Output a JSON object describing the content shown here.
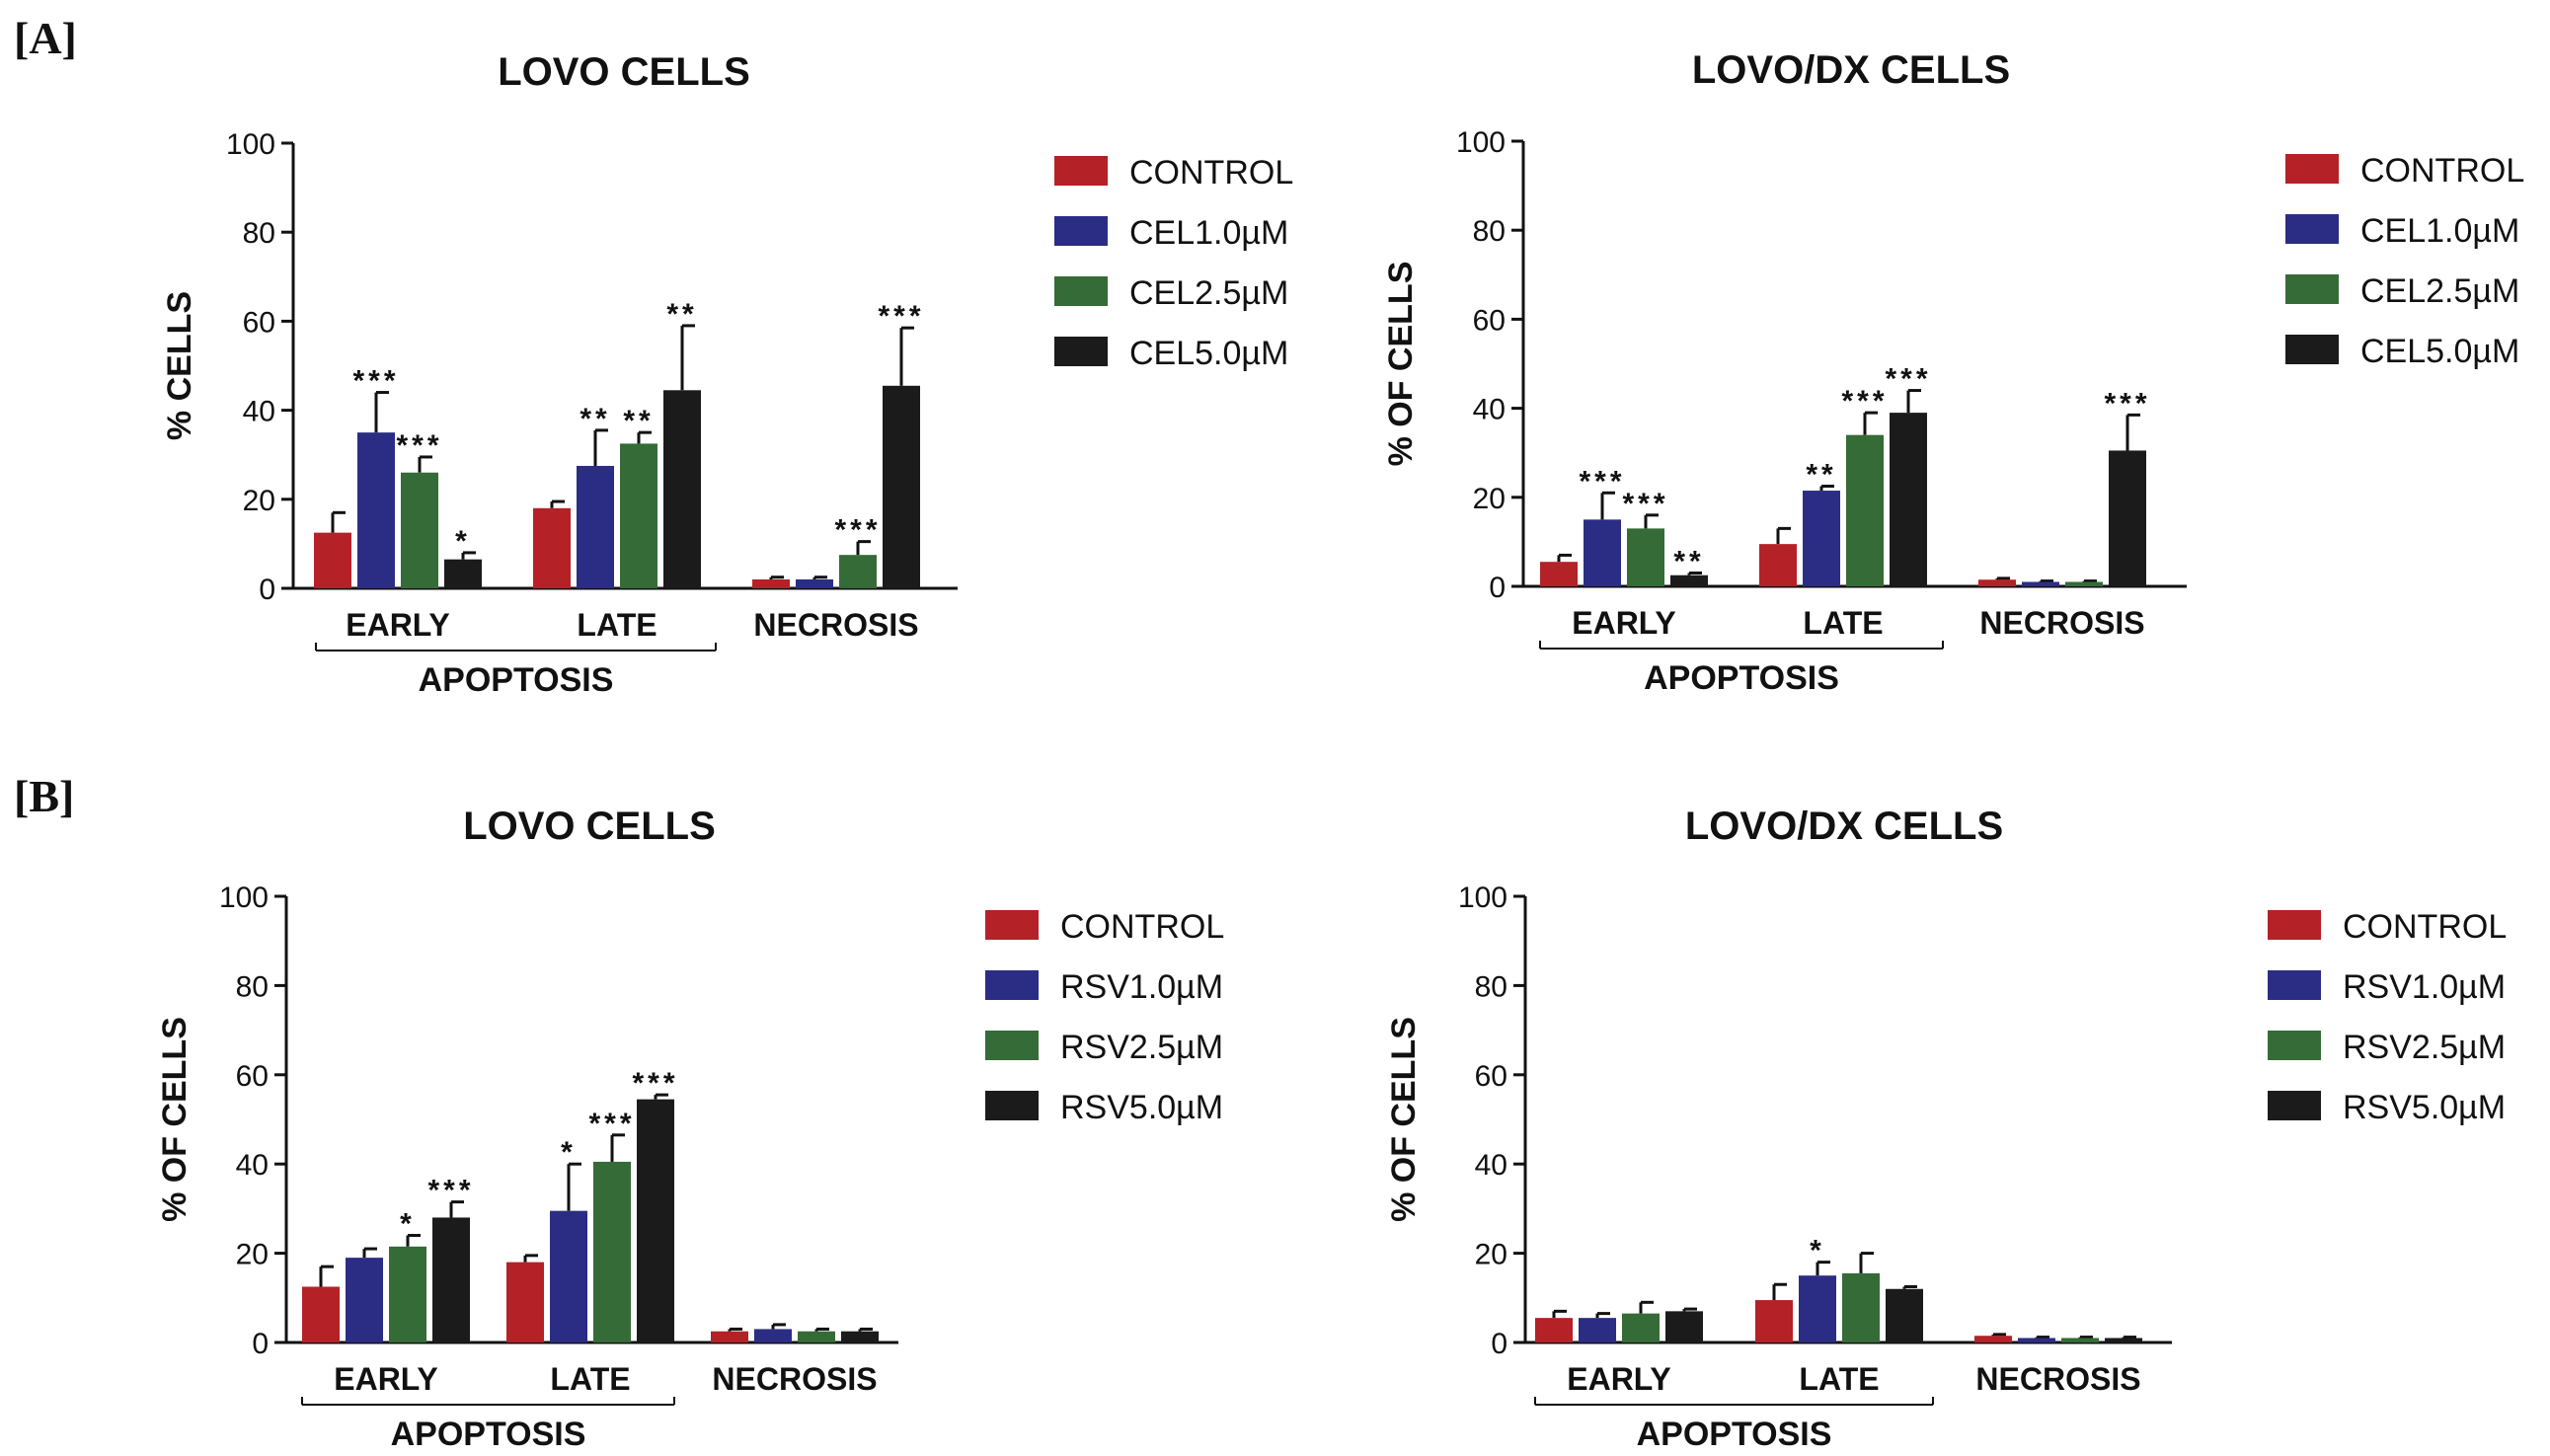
{
  "panels": [
    {
      "label": "[A]"
    },
    {
      "label": "[B]"
    }
  ],
  "colors": {
    "control": "#b42127",
    "dose1": "#2b2d84",
    "dose2": "#356b37",
    "dose3": "#1b1b1b",
    "axis": "#111111"
  },
  "chart_data": [
    {
      "type": "bar",
      "panel": "A",
      "title": "LOVO CELLS",
      "xlabel": "",
      "ylabel": "% CELLS",
      "ylim": [
        0,
        100
      ],
      "yticks": [
        "0",
        "20",
        "40",
        "60",
        "80",
        "100"
      ],
      "categories": [
        "EARLY",
        "LATE",
        "NECROSIS"
      ],
      "group_label": "APOPTOSIS",
      "legend_position": "right",
      "series": [
        {
          "name": "CONTROL",
          "color_key": "control",
          "values": [
            12.5,
            18,
            2
          ],
          "errors": [
            4.5,
            1.5,
            0.5
          ],
          "sig": [
            "",
            "",
            ""
          ]
        },
        {
          "name": "CEL1.0µM",
          "color_key": "dose1",
          "values": [
            35,
            27.5,
            2
          ],
          "errors": [
            9,
            8,
            0.5
          ],
          "sig": [
            "***",
            "**",
            ""
          ]
        },
        {
          "name": "CEL2.5µM",
          "color_key": "dose2",
          "values": [
            26,
            32.5,
            7.5
          ],
          "errors": [
            3.5,
            2.5,
            3
          ],
          "sig": [
            "***",
            "**",
            "***"
          ]
        },
        {
          "name": "CEL5.0µM",
          "color_key": "dose3",
          "values": [
            6.5,
            44.5,
            45.5
          ],
          "errors": [
            1.5,
            14.5,
            13
          ],
          "sig": [
            "*",
            "**",
            "***"
          ]
        }
      ]
    },
    {
      "type": "bar",
      "panel": "A",
      "title": "LOVO/DX CELLS",
      "xlabel": "",
      "ylabel": "% OF CELLS",
      "ylim": [
        0,
        100
      ],
      "yticks": [
        "0",
        "20",
        "40",
        "60",
        "80",
        "100"
      ],
      "categories": [
        "EARLY",
        "LATE",
        "NECROSIS"
      ],
      "group_label": "APOPTOSIS",
      "legend_position": "right",
      "series": [
        {
          "name": "CONTROL",
          "color_key": "control",
          "values": [
            5.5,
            9.5,
            1.5
          ],
          "errors": [
            1.5,
            3.5,
            0.3
          ],
          "sig": [
            "",
            "",
            ""
          ]
        },
        {
          "name": "CEL1.0µM",
          "color_key": "dose1",
          "values": [
            15,
            21.5,
            1
          ],
          "errors": [
            6,
            1,
            0.2
          ],
          "sig": [
            "***",
            "**",
            ""
          ]
        },
        {
          "name": "CEL2.5µM",
          "color_key": "dose2",
          "values": [
            13,
            34,
            1
          ],
          "errors": [
            3,
            5,
            0.2
          ],
          "sig": [
            "***",
            "***",
            ""
          ]
        },
        {
          "name": "CEL5.0µM",
          "color_key": "dose3",
          "values": [
            2.5,
            39,
            30.5
          ],
          "errors": [
            0.5,
            5,
            8
          ],
          "sig": [
            "**",
            "***",
            "***"
          ]
        }
      ]
    },
    {
      "type": "bar",
      "panel": "B",
      "title": "LOVO CELLS",
      "xlabel": "",
      "ylabel": "% OF CELLS",
      "ylim": [
        0,
        100
      ],
      "yticks": [
        "0",
        "20",
        "40",
        "60",
        "80",
        "100"
      ],
      "categories": [
        "EARLY",
        "LATE",
        "NECROSIS"
      ],
      "group_label": "APOPTOSIS",
      "legend_position": "right",
      "series": [
        {
          "name": "CONTROL",
          "color_key": "control",
          "values": [
            12.5,
            18,
            2.5
          ],
          "errors": [
            4.5,
            1.5,
            0.5
          ],
          "sig": [
            "",
            "",
            ""
          ]
        },
        {
          "name": "RSV1.0µM",
          "color_key": "dose1",
          "values": [
            19,
            29.5,
            3
          ],
          "errors": [
            2,
            10.5,
            1
          ],
          "sig": [
            "",
            "*",
            ""
          ]
        },
        {
          "name": "RSV2.5µM",
          "color_key": "dose2",
          "values": [
            21.5,
            40.5,
            2.5
          ],
          "errors": [
            2.5,
            6,
            0.5
          ],
          "sig": [
            "*",
            "***",
            ""
          ]
        },
        {
          "name": "RSV5.0µM",
          "color_key": "dose3",
          "values": [
            28,
            54.5,
            2.5
          ],
          "errors": [
            3.5,
            1,
            0.5
          ],
          "sig": [
            "***",
            "***",
            ""
          ]
        }
      ]
    },
    {
      "type": "bar",
      "panel": "B",
      "title": "LOVO/DX CELLS",
      "xlabel": "",
      "ylabel": "% OF CELLS",
      "ylim": [
        0,
        100
      ],
      "yticks": [
        "0",
        "20",
        "40",
        "60",
        "80",
        "100"
      ],
      "categories": [
        "EARLY",
        "LATE",
        "NECROSIS"
      ],
      "group_label": "APOPTOSIS",
      "legend_position": "right",
      "series": [
        {
          "name": "CONTROL",
          "color_key": "control",
          "values": [
            5.5,
            9.5,
            1.5
          ],
          "errors": [
            1.5,
            3.5,
            0.3
          ],
          "sig": [
            "",
            "",
            ""
          ]
        },
        {
          "name": "RSV1.0µM",
          "color_key": "dose1",
          "values": [
            5.5,
            15,
            1
          ],
          "errors": [
            1,
            3,
            0.2
          ],
          "sig": [
            "",
            "*",
            ""
          ]
        },
        {
          "name": "RSV2.5µM",
          "color_key": "dose2",
          "values": [
            6.5,
            15.5,
            1
          ],
          "errors": [
            2.5,
            4.5,
            0.2
          ],
          "sig": [
            "",
            "",
            ""
          ]
        },
        {
          "name": "RSV5.0µM",
          "color_key": "dose3",
          "values": [
            7,
            12,
            1
          ],
          "errors": [
            0.5,
            0.5,
            0.2
          ],
          "sig": [
            "",
            "",
            ""
          ]
        }
      ]
    }
  ]
}
